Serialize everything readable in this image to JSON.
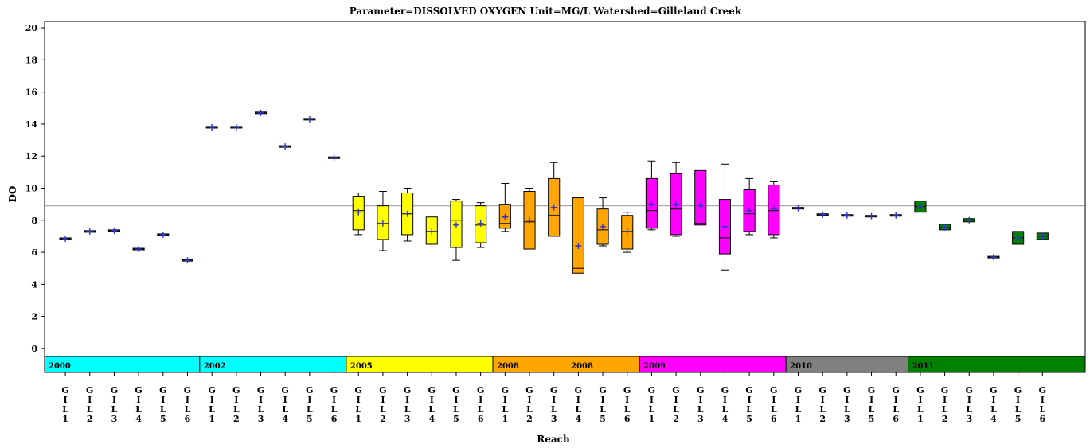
{
  "chart_data": {
    "type": "box",
    "title": "Parameter=DISSOLVED OXYGEN Unit=MG/L Watershed=Gilleland Creek",
    "xlabel": "Reach",
    "ylabel": "DO",
    "ylim": [
      -0.5,
      20.4
    ],
    "yticks": [
      0,
      2,
      4,
      6,
      8,
      10,
      12,
      14,
      16,
      18,
      20
    ],
    "reference_line": 8.9,
    "grid": false,
    "colors": {
      "2000": "#00FFFF",
      "2002": "#00FFFF",
      "2005": "#FFFF00",
      "2008": "#FFA500",
      "2009": "#FF00FF",
      "2010": "#808080",
      "2011": "#008000",
      "reference_line": "#AAAAAA",
      "mean_marker": "#3333CC"
    },
    "year_bands": [
      {
        "label": "2000",
        "start": 0,
        "count": 6,
        "color": "#00FFFF"
      },
      {
        "label": "2002",
        "start": 6,
        "count": 6,
        "color": "#00FFFF"
      },
      {
        "label": "2005",
        "start": 12,
        "count": 6,
        "color": "#FFFF00"
      },
      {
        "label": "2008",
        "label2": "2008",
        "start": 18,
        "count": 6,
        "color": "#FFA500"
      },
      {
        "label": "2009",
        "start": 24,
        "count": 6,
        "color": "#FF00FF"
      },
      {
        "label": "2010",
        "start": 30,
        "count": 5,
        "color": "#808080"
      },
      {
        "label": "2011",
        "start": 35,
        "count": 6,
        "color": "#008000"
      }
    ],
    "reaches": [
      {
        "label": "GIL1",
        "year": "2000",
        "min": 6.85,
        "q1": 6.85,
        "median": 6.85,
        "q3": 6.85,
        "max": 6.85,
        "mean": 6.85
      },
      {
        "label": "GIL2",
        "year": "2000",
        "min": 7.3,
        "q1": 7.3,
        "median": 7.3,
        "q3": 7.3,
        "max": 7.3,
        "mean": 7.3
      },
      {
        "label": "GIL3",
        "year": "2000",
        "min": 7.35,
        "q1": 7.35,
        "median": 7.35,
        "q3": 7.35,
        "max": 7.35,
        "mean": 7.35
      },
      {
        "label": "GIL4",
        "year": "2000",
        "min": 6.2,
        "q1": 6.2,
        "median": 6.2,
        "q3": 6.2,
        "max": 6.2,
        "mean": 6.2
      },
      {
        "label": "GIL5",
        "year": "2000",
        "min": 7.1,
        "q1": 7.1,
        "median": 7.1,
        "q3": 7.1,
        "max": 7.1,
        "mean": 7.1
      },
      {
        "label": "GIL6",
        "year": "2000",
        "min": 5.5,
        "q1": 5.5,
        "median": 5.5,
        "q3": 5.5,
        "max": 5.5,
        "mean": 5.5
      },
      {
        "label": "GIL1",
        "year": "2002",
        "min": 13.8,
        "q1": 13.8,
        "median": 13.8,
        "q3": 13.8,
        "max": 13.8,
        "mean": 13.8
      },
      {
        "label": "GIL2",
        "year": "2002",
        "min": 13.8,
        "q1": 13.8,
        "median": 13.8,
        "q3": 13.8,
        "max": 13.8,
        "mean": 13.8
      },
      {
        "label": "GIL3",
        "year": "2002",
        "min": 14.7,
        "q1": 14.7,
        "median": 14.7,
        "q3": 14.7,
        "max": 14.7,
        "mean": 14.7
      },
      {
        "label": "GIL4",
        "year": "2002",
        "min": 12.6,
        "q1": 12.6,
        "median": 12.6,
        "q3": 12.6,
        "max": 12.6,
        "mean": 12.6
      },
      {
        "label": "GIL5",
        "year": "2002",
        "min": 14.3,
        "q1": 14.3,
        "median": 14.3,
        "q3": 14.3,
        "max": 14.3,
        "mean": 14.3
      },
      {
        "label": "GIL6",
        "year": "2002",
        "min": 11.9,
        "q1": 11.9,
        "median": 11.9,
        "q3": 11.9,
        "max": 11.9,
        "mean": 11.9
      },
      {
        "label": "GIL1",
        "year": "2005",
        "min": 7.1,
        "q1": 7.4,
        "median": 8.6,
        "q3": 9.5,
        "max": 9.7,
        "mean": 8.5
      },
      {
        "label": "GIL2",
        "year": "2005",
        "min": 6.1,
        "q1": 6.8,
        "median": 7.8,
        "q3": 8.9,
        "max": 9.8,
        "mean": 7.8
      },
      {
        "label": "GIL3",
        "year": "2005",
        "min": 6.7,
        "q1": 7.1,
        "median": 8.4,
        "q3": 9.7,
        "max": 10.0,
        "mean": 8.4
      },
      {
        "label": "GIL4",
        "year": "2005",
        "min": 6.5,
        "q1": 6.5,
        "median": 7.3,
        "q3": 8.2,
        "max": 8.2,
        "mean": 7.3
      },
      {
        "label": "GIL5",
        "year": "2005",
        "min": 5.5,
        "q1": 6.3,
        "median": 8.0,
        "q3": 9.2,
        "max": 9.3,
        "mean": 7.7
      },
      {
        "label": "GIL6",
        "year": "2005",
        "min": 6.3,
        "q1": 6.6,
        "median": 7.7,
        "q3": 8.9,
        "max": 9.1,
        "mean": 7.8
      },
      {
        "label": "GIL1",
        "year": "2008",
        "min": 7.3,
        "q1": 7.5,
        "median": 7.8,
        "q3": 9.0,
        "max": 10.3,
        "mean": 8.2
      },
      {
        "label": "GIL2",
        "year": "2008",
        "min": 6.2,
        "q1": 6.2,
        "median": 7.9,
        "q3": 9.8,
        "max": 10.0,
        "mean": 8.0
      },
      {
        "label": "GIL3",
        "year": "2008",
        "min": 7.0,
        "q1": 7.0,
        "median": 8.3,
        "q3": 10.6,
        "max": 11.6,
        "mean": 8.8
      },
      {
        "label": "GIL4",
        "year": "2008",
        "min": 4.7,
        "q1": 4.7,
        "median": 5.0,
        "q3": 9.4,
        "max": 9.4,
        "mean": 6.4
      },
      {
        "label": "GIL5",
        "year": "2008",
        "min": 6.4,
        "q1": 6.5,
        "median": 7.4,
        "q3": 8.7,
        "max": 9.4,
        "mean": 7.6
      },
      {
        "label": "GIL6",
        "year": "2008",
        "min": 6.0,
        "q1": 6.2,
        "median": 7.3,
        "q3": 8.3,
        "max": 8.5,
        "mean": 7.3
      },
      {
        "label": "GIL1",
        "year": "2009",
        "min": 7.4,
        "q1": 7.5,
        "median": 8.6,
        "q3": 10.6,
        "max": 11.7,
        "mean": 9.0
      },
      {
        "label": "GIL2",
        "year": "2009",
        "min": 7.0,
        "q1": 7.1,
        "median": 8.7,
        "q3": 10.9,
        "max": 11.6,
        "mean": 9.0
      },
      {
        "label": "GIL3",
        "year": "2009",
        "min": 7.7,
        "q1": 7.7,
        "median": 7.8,
        "q3": 11.1,
        "max": 11.1,
        "mean": 8.9
      },
      {
        "label": "GIL4",
        "year": "2009",
        "min": 4.9,
        "q1": 5.9,
        "median": 6.9,
        "q3": 9.3,
        "max": 11.5,
        "mean": 7.6
      },
      {
        "label": "GIL5",
        "year": "2009",
        "min": 7.1,
        "q1": 7.3,
        "median": 8.4,
        "q3": 9.9,
        "max": 10.6,
        "mean": 8.6
      },
      {
        "label": "GIL6",
        "year": "2009",
        "min": 6.9,
        "q1": 7.1,
        "median": 8.6,
        "q3": 10.2,
        "max": 10.4,
        "mean": 8.7
      },
      {
        "label": "GIL1",
        "year": "2010",
        "min": 8.75,
        "q1": 8.75,
        "median": 8.75,
        "q3": 8.75,
        "max": 8.75,
        "mean": 8.75
      },
      {
        "label": "GIL2",
        "year": "2010",
        "min": 8.35,
        "q1": 8.35,
        "median": 8.35,
        "q3": 8.35,
        "max": 8.35,
        "mean": 8.35
      },
      {
        "label": "GIL3",
        "year": "2010",
        "min": 8.3,
        "q1": 8.3,
        "median": 8.3,
        "q3": 8.3,
        "max": 8.3,
        "mean": 8.3
      },
      {
        "label": "GIL5",
        "year": "2010",
        "min": 8.25,
        "q1": 8.25,
        "median": 8.25,
        "q3": 8.25,
        "max": 8.25,
        "mean": 8.25
      },
      {
        "label": "GIL6",
        "year": "2010",
        "min": 8.3,
        "q1": 8.3,
        "median": 8.3,
        "q3": 8.3,
        "max": 8.3,
        "mean": 8.3
      },
      {
        "label": "GIL1",
        "year": "2011",
        "min": 8.5,
        "q1": 8.5,
        "median": 8.85,
        "q3": 9.2,
        "max": 9.2,
        "mean": 8.85
      },
      {
        "label": "GIL2",
        "year": "2011",
        "min": 7.4,
        "q1": 7.4,
        "median": 7.55,
        "q3": 7.75,
        "max": 7.75,
        "mean": 7.55
      },
      {
        "label": "GIL3",
        "year": "2011",
        "min": 7.9,
        "q1": 7.9,
        "median": 8.0,
        "q3": 8.1,
        "max": 8.1,
        "mean": 8.0
      },
      {
        "label": "GIL4",
        "year": "2011",
        "min": 5.7,
        "q1": 5.7,
        "median": 5.7,
        "q3": 5.7,
        "max": 5.7,
        "mean": 5.7
      },
      {
        "label": "GIL5",
        "year": "2011",
        "min": 6.5,
        "q1": 6.5,
        "median": 6.9,
        "q3": 7.3,
        "max": 7.3,
        "mean": 6.9
      },
      {
        "label": "GIL6",
        "year": "2011",
        "min": 6.8,
        "q1": 6.8,
        "median": 7.0,
        "q3": 7.2,
        "max": 7.2,
        "mean": 7.0
      }
    ]
  }
}
